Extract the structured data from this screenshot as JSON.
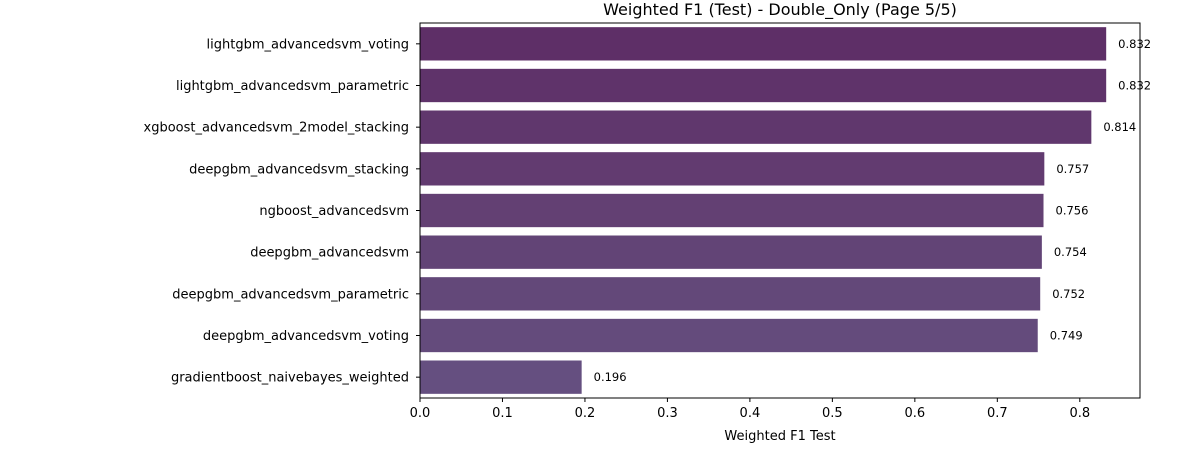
{
  "chart_data": {
    "type": "bar",
    "orientation": "horizontal",
    "title": "Weighted F1 (Test) - Double_Only (Page 5/5)",
    "xlabel": "Weighted F1 Test",
    "ylabel": "",
    "xlim": [
      0,
      0.873
    ],
    "xticks": [
      "0.0",
      "0.1",
      "0.2",
      "0.3",
      "0.4",
      "0.5",
      "0.6",
      "0.7",
      "0.8"
    ],
    "xtick_values": [
      0,
      0.1,
      0.2,
      0.3,
      0.4,
      0.5,
      0.6,
      0.7,
      0.8
    ],
    "grid": false,
    "categories": [
      "lightgbm_advancedsvm_voting",
      "lightgbm_advancedsvm_parametric",
      "xgboost_advancedsvm_2model_stacking",
      "deepgbm_advancedsvm_stacking",
      "ngboost_advancedsvm",
      "deepgbm_advancedsvm",
      "deepgbm_advancedsvm_parametric",
      "deepgbm_advancedsvm_voting",
      "gradientboost_naivebayes_weighted"
    ],
    "values": [
      0.832,
      0.832,
      0.814,
      0.757,
      0.756,
      0.754,
      0.752,
      0.749,
      0.196
    ],
    "data_labels": [
      "0.832",
      "0.832",
      "0.814",
      "0.757",
      "0.756",
      "0.754",
      "0.752",
      "0.749",
      "0.196"
    ],
    "bar_colors": [
      "#5e2f67",
      "#5f336a",
      "#60376d",
      "#623b70",
      "#634073",
      "#624476",
      "#634879",
      "#644b7c",
      "#654f80"
    ]
  }
}
